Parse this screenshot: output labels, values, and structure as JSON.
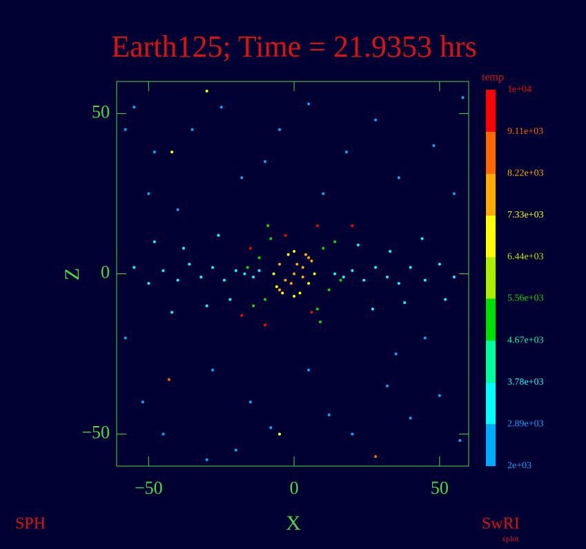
{
  "chart_data": {
    "type": "scatter",
    "title": "Earth125; Time = 21.9353 hrs",
    "x_label": "X",
    "y_label": "Z",
    "xlim": [
      -61,
      60
    ],
    "ylim": [
      -60,
      60
    ],
    "xticks": [
      {
        "value": -50,
        "label": "−50"
      },
      0,
      50
    ],
    "yticks": [
      {
        "value": -50,
        "label": "−50"
      },
      0,
      50
    ],
    "x": [
      0,
      3,
      -3,
      5,
      -5,
      2,
      -2,
      6,
      -6,
      7,
      -7,
      0,
      0,
      4,
      -4,
      5,
      -5,
      1,
      -1,
      3,
      10,
      -10,
      8,
      -8,
      -12,
      12,
      -14,
      14,
      -9,
      9,
      -16,
      16,
      -3,
      6,
      -15,
      -18,
      20,
      8,
      -10,
      -55,
      -50,
      -45,
      -40,
      -36,
      -32,
      -28,
      -24,
      -20,
      -17,
      -14,
      -12,
      14,
      17,
      20,
      24,
      28,
      32,
      36,
      40,
      45,
      50,
      55,
      -48,
      -42,
      -38,
      -30,
      -26,
      -22,
      22,
      27,
      33,
      38,
      44,
      52,
      -58,
      -55,
      -48,
      -40,
      -35,
      -28,
      -52,
      -45,
      -30,
      -20,
      -15,
      -8,
      5,
      12,
      20,
      32,
      40,
      50,
      57,
      55,
      48,
      36,
      28,
      18,
      5,
      -5,
      -18,
      -25,
      58,
      45,
      -58,
      -50,
      35,
      10,
      -10,
      -42,
      -30,
      -5,
      28,
      -43
    ],
    "y": [
      0,
      2,
      -2,
      -3,
      3,
      -6,
      6,
      4,
      -4,
      0,
      0,
      7,
      -7,
      6,
      -6,
      5,
      -5,
      3,
      -3,
      -1,
      8,
      -8,
      -11,
      11,
      5,
      -5,
      -10,
      10,
      15,
      -15,
      2,
      -2,
      12,
      -12,
      8,
      -13,
      15,
      15,
      -16,
      2,
      -3,
      1,
      -2,
      3,
      -1,
      2,
      -2,
      1,
      0,
      -1,
      1,
      0,
      -1,
      1,
      -2,
      2,
      -1,
      -3,
      2,
      -2,
      3,
      -1,
      10,
      -12,
      8,
      -10,
      12,
      -8,
      9,
      -11,
      7,
      -9,
      11,
      -8,
      45,
      52,
      38,
      20,
      45,
      -30,
      -40,
      -50,
      -58,
      -55,
      -40,
      -48,
      -30,
      -44,
      -50,
      -35,
      -45,
      -38,
      -52,
      25,
      40,
      30,
      48,
      38,
      53,
      45,
      30,
      52,
      55,
      -20,
      -20,
      25,
      -25,
      25,
      35,
      38,
      57,
      -50,
      -57,
      -33
    ],
    "temp": [
      7600,
      7400,
      7700,
      7200,
      7500,
      7100,
      7300,
      7800,
      7000,
      6900,
      6950,
      7050,
      7150,
      7650,
      7250,
      7450,
      7350,
      7550,
      7750,
      7850,
      5000,
      4900,
      5200,
      5100,
      4800,
      5300,
      4700,
      5000,
      5400,
      5200,
      4800,
      5100,
      9500,
      9400,
      9600,
      9700,
      9300,
      9800,
      9200,
      3300,
      3400,
      3500,
      3300,
      3600,
      3400,
      3500,
      3300,
      3600,
      3700,
      3500,
      3600,
      3700,
      3600,
      3500,
      3400,
      3300,
      3500,
      3400,
      3300,
      3500,
      3400,
      3300,
      3100,
      3000,
      3200,
      3100,
      3000,
      3200,
      3100,
      3000,
      3200,
      3100,
      3000,
      3100,
      2700,
      2600,
      2800,
      2700,
      2600,
      2800,
      2700,
      2600,
      2800,
      2700,
      2600,
      2800,
      2700,
      2600,
      2800,
      2700,
      2600,
      2800,
      2700,
      2600,
      2800,
      2700,
      2600,
      2800,
      2700,
      2600,
      2800,
      2700,
      2600,
      2800,
      2700,
      2600,
      2800,
      2700,
      2600,
      7000,
      7100,
      6900,
      8300,
      8400
    ],
    "colorbar": {
      "label": "temp",
      "lim": [
        2000,
        10000
      ],
      "ticks": [
        {
          "value": 2000,
          "label": "2e+03"
        },
        {
          "value": 2890,
          "label": "2.89e+03"
        },
        {
          "value": 3780,
          "label": "3.78e+03"
        },
        {
          "value": 4670,
          "label": "4.67e+03"
        },
        {
          "value": 5560,
          "label": "5.56e+03"
        },
        {
          "value": 6440,
          "label": "6.44e+03"
        },
        {
          "value": 7330,
          "label": "7.33e+03"
        },
        {
          "value": 8220,
          "label": "8.22e+03"
        },
        {
          "value": 9110,
          "label": "9.11e+03"
        },
        {
          "value": 10000,
          "label": "1e+04"
        }
      ],
      "colors": [
        "#00aaff",
        "#00ffff",
        "#00ff99",
        "#00dd00",
        "#aaee00",
        "#ffff00",
        "#ffaa00",
        "#ff6600",
        "#ff0000"
      ]
    },
    "annotations": {
      "left": "SPH",
      "right": "SwRI",
      "right_small": "xplot"
    },
    "title_color": "#dd1111",
    "axis_color": "#44dd44",
    "background": "#000033"
  }
}
